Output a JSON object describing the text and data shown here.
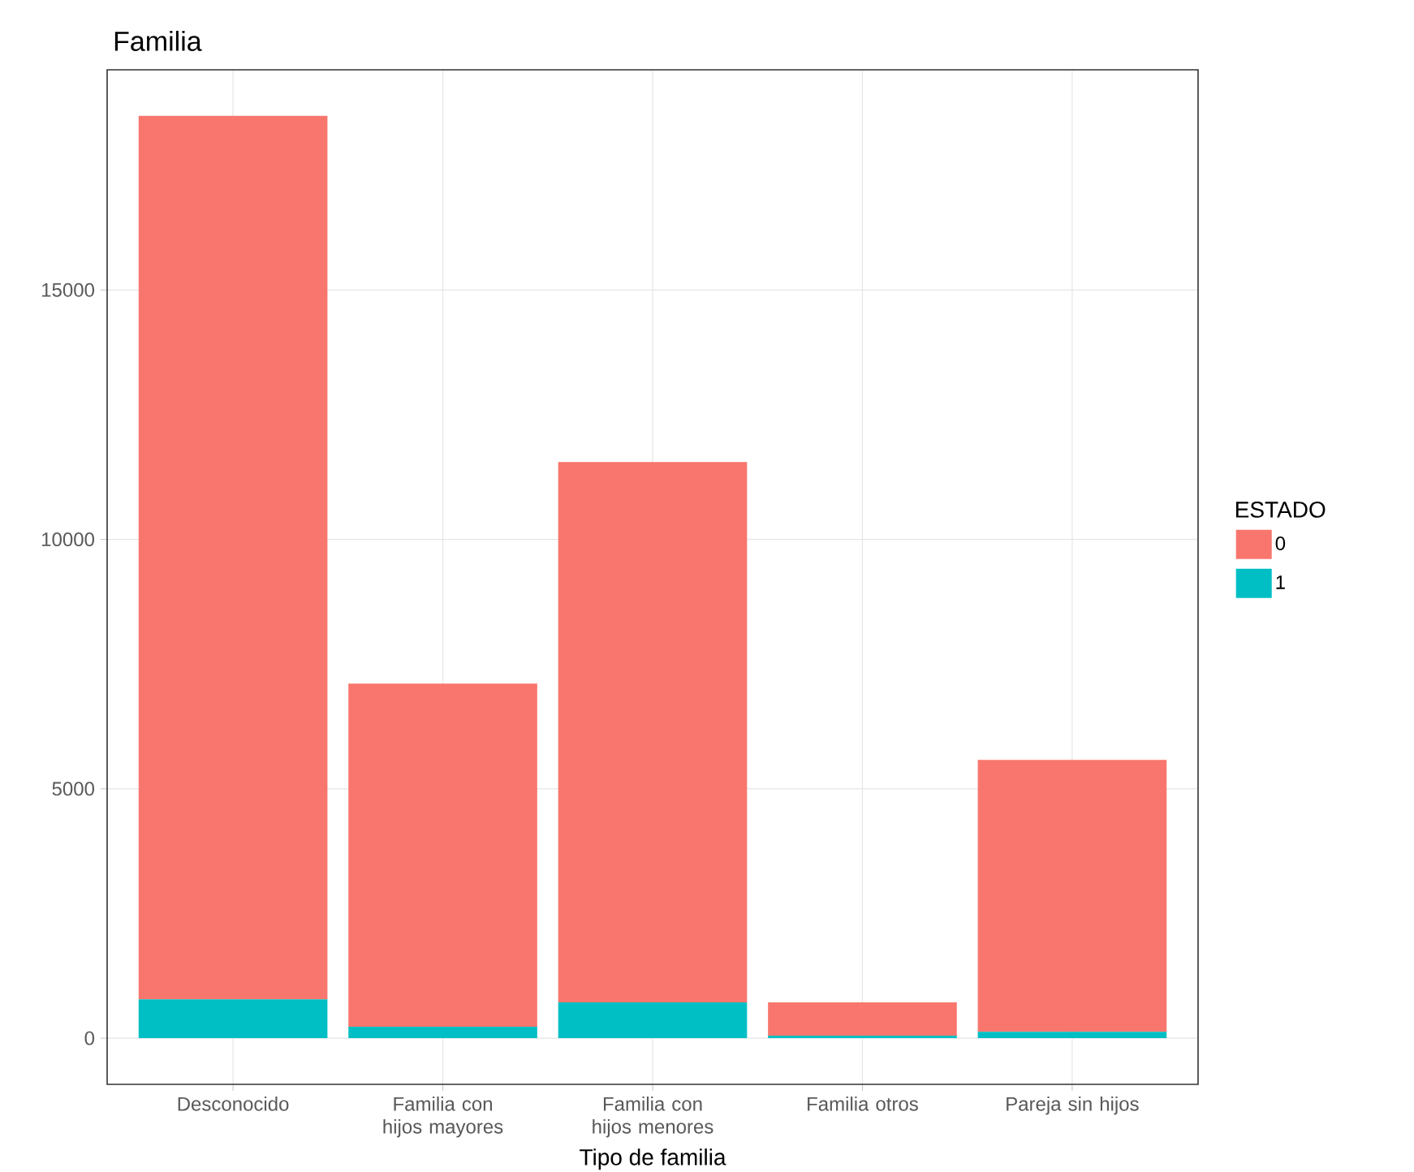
{
  "chart_data": {
    "type": "bar",
    "title": "Familia",
    "xlabel": "Tipo de familia",
    "legend_title": "ESTADO",
    "categories": [
      "Desconocido",
      "Familia con hijos mayores",
      "Familia con hijos menores",
      "Familia otros",
      "Pareja sin hijos"
    ],
    "stacked": true,
    "series": [
      {
        "name": "1",
        "color": "#00bfc4",
        "values": [
          780,
          230,
          720,
          50,
          130
        ]
      },
      {
        "name": "0",
        "color": "#f8766d",
        "values": [
          17710,
          6880,
          10830,
          670,
          5450
        ]
      }
    ],
    "ylim": [
      -925,
      19415
    ],
    "yticks": [
      0,
      5000,
      10000,
      15000
    ],
    "grid": true,
    "legend": "right"
  }
}
